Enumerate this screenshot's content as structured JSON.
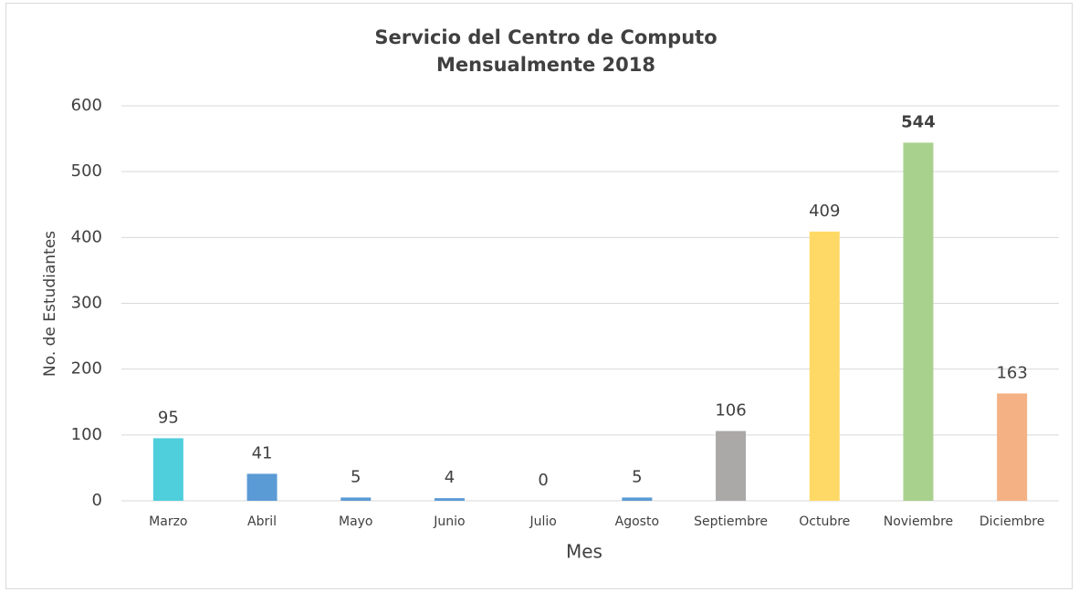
{
  "chart_data": {
    "type": "bar",
    "title": [
      "Servicio del Centro de Computo",
      "Mensualmente 2018"
    ],
    "x_label": "Mes",
    "y_label": "No. de Estudiantes",
    "categories": [
      "Marzo",
      "Abril",
      "Mayo",
      "Junio",
      "Julio",
      "Agosto",
      "Septiembre",
      "Octubre",
      "Noviembre",
      "Diciembre"
    ],
    "values": [
      95,
      41,
      5,
      4,
      0,
      5,
      106,
      409,
      544,
      163
    ],
    "colors": [
      "#4fcfdc",
      "#5b9bd5",
      "#5b9bd5",
      "#5b9bd5",
      "#5b9bd5",
      "#5b9bd5",
      "#aba8a8",
      "#ffd966",
      "#a9d18e",
      "#f4b183"
    ],
    "highlight_category": "Noviembre",
    "ylim": [
      0,
      600
    ],
    "yticks": [
      0,
      100,
      200,
      300,
      400,
      500,
      600
    ],
    "grid": true
  }
}
